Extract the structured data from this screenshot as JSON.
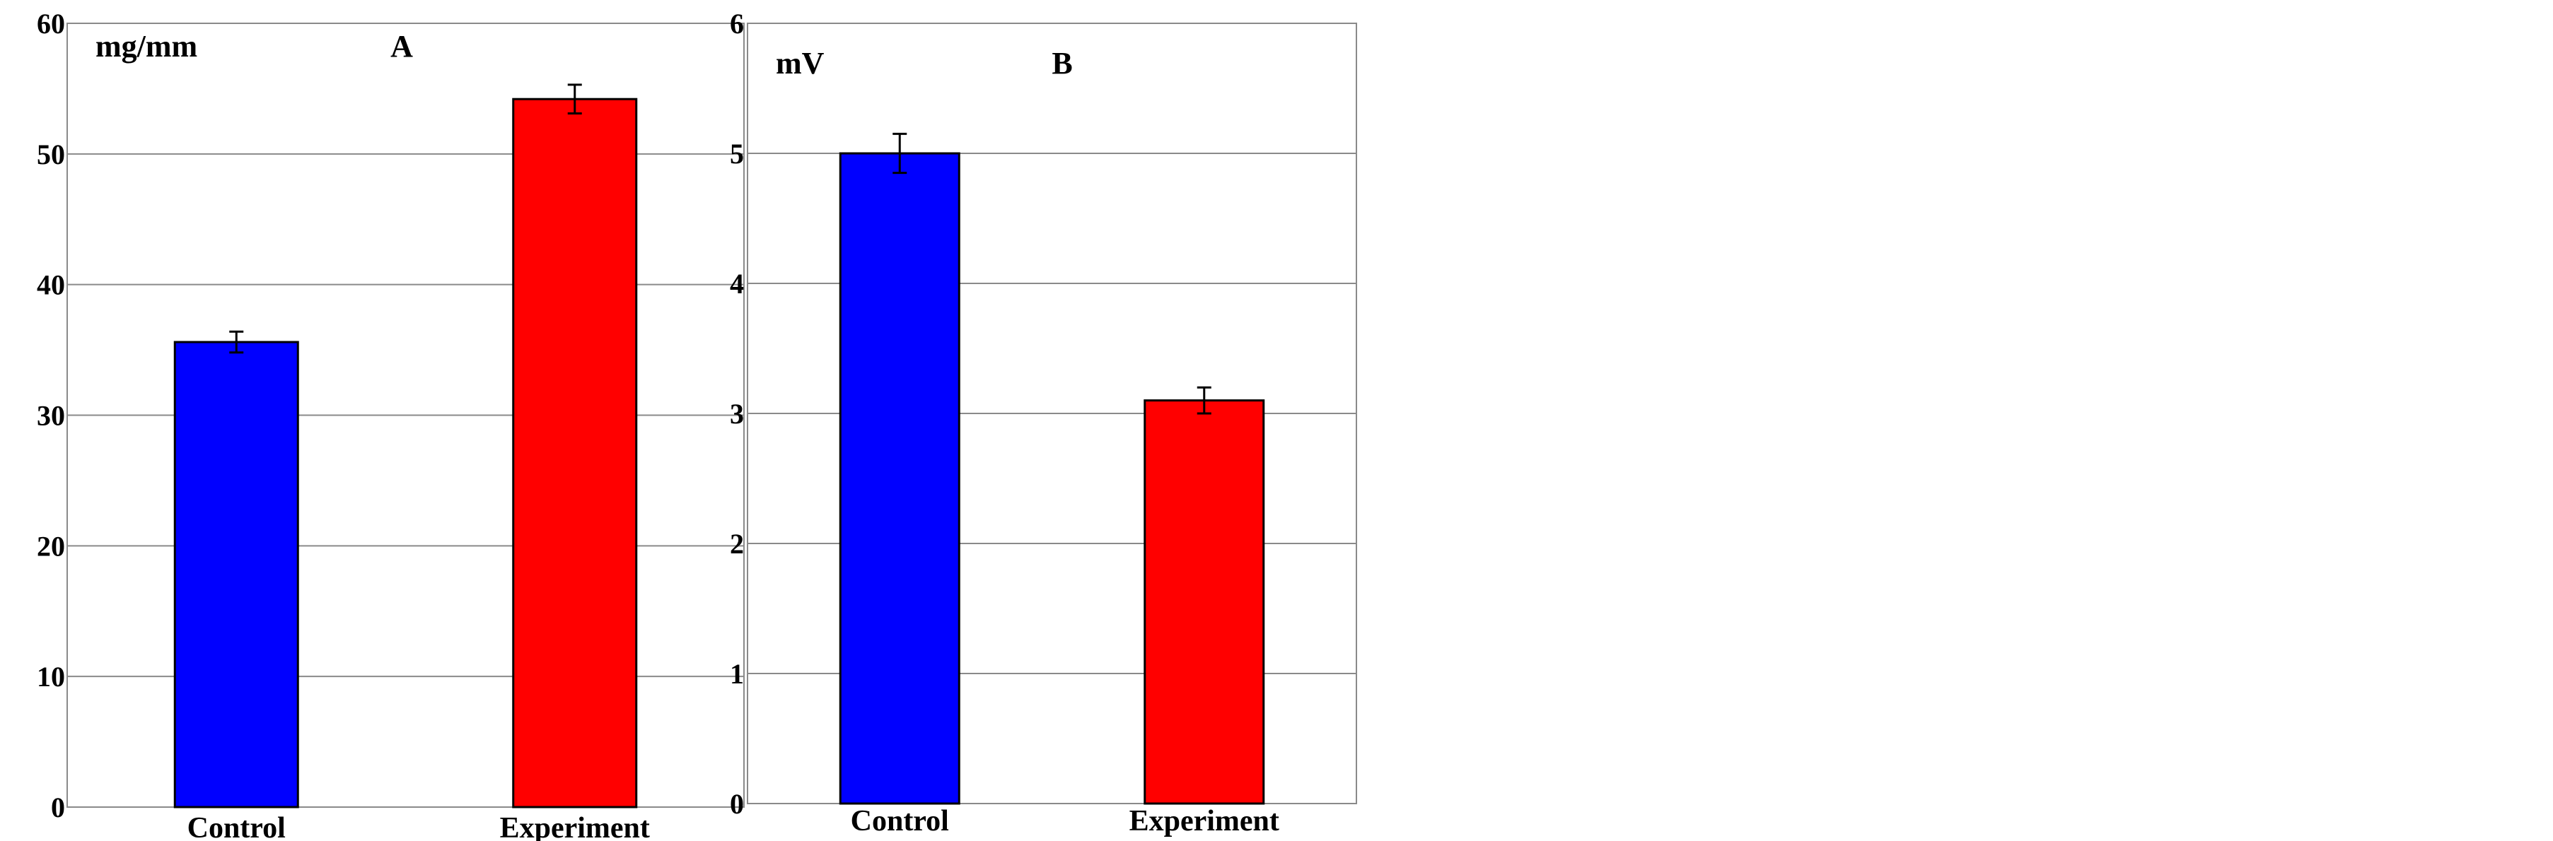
{
  "chart_data": [
    {
      "type": "bar",
      "panel_label": "A",
      "unit_label": "mg/mm",
      "categories": [
        "Control",
        "Experiment"
      ],
      "values": [
        35.6,
        54.2
      ],
      "errors": [
        0.8,
        1.1
      ],
      "colors": [
        "#0000ff",
        "#ff0000"
      ],
      "ylim": [
        0,
        60
      ],
      "yticks": [
        0,
        10,
        20,
        30,
        40,
        50,
        60
      ],
      "grid": true
    },
    {
      "type": "bar",
      "panel_label": "B",
      "unit_label": "mV",
      "categories": [
        "Control",
        "Experiment"
      ],
      "values": [
        5.0,
        3.1
      ],
      "errors": [
        0.15,
        0.1
      ],
      "colors": [
        "#0000ff",
        "#ff0000"
      ],
      "ylim": [
        0,
        6
      ],
      "yticks": [
        0,
        1,
        2,
        3,
        4,
        5,
        6
      ],
      "grid": true
    }
  ]
}
